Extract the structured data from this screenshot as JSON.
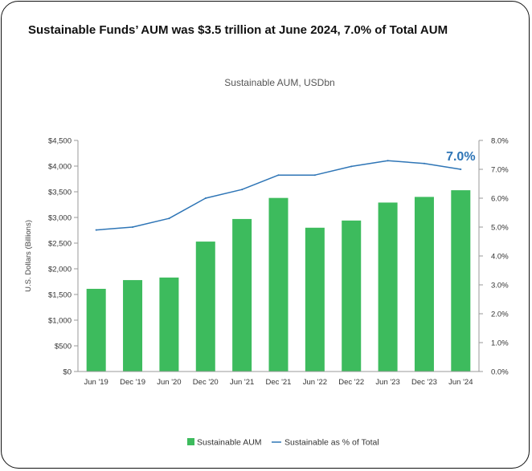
{
  "headline": "Sustainable Funds’ AUM was $3.5 trillion at June 2024, 7.0% of Total AUM",
  "colors": {
    "bar": "#3dbb5d",
    "line": "#2e75b6",
    "axis": "#999999"
  },
  "chart_data": {
    "type": "bar",
    "title": "Sustainable AUM, USDbn",
    "xlabel": "",
    "ylabel": "U.S. Dollars (Billions)",
    "categories": [
      "Jun '19",
      "Dec '19",
      "Jun '20",
      "Dec '20",
      "Jun '21",
      "Dec '21",
      "Jun '22",
      "Dec '22",
      "Jun '23",
      "Dec '23",
      "Jun '24"
    ],
    "series": [
      {
        "name": "Sustainable AUM",
        "type": "bar",
        "axis": "left",
        "values": [
          1610,
          1780,
          1830,
          2530,
          2970,
          3380,
          2800,
          2940,
          3290,
          3400,
          3530
        ]
      },
      {
        "name": "Sustainable as % of Total",
        "type": "line",
        "axis": "right",
        "values": [
          4.9,
          5.0,
          5.3,
          6.0,
          6.3,
          6.8,
          6.8,
          7.1,
          7.3,
          7.2,
          7.0
        ]
      }
    ],
    "ylim": [
      0,
      4500
    ],
    "y_ticks": [
      "$0",
      "$500",
      "$1,000",
      "$1,500",
      "$2,000",
      "$2,500",
      "$3,000",
      "$3,500",
      "$4,000",
      "$4,500"
    ],
    "y2lim": [
      0,
      8
    ],
    "y2_ticks": [
      "0.0%",
      "1.0%",
      "2.0%",
      "3.0%",
      "4.0%",
      "5.0%",
      "6.0%",
      "7.0%",
      "8.0%"
    ],
    "annotation": "7.0%",
    "legend": [
      "Sustainable AUM",
      "Sustainable as % of Total"
    ],
    "legend_position": "bottom",
    "grid": false
  }
}
